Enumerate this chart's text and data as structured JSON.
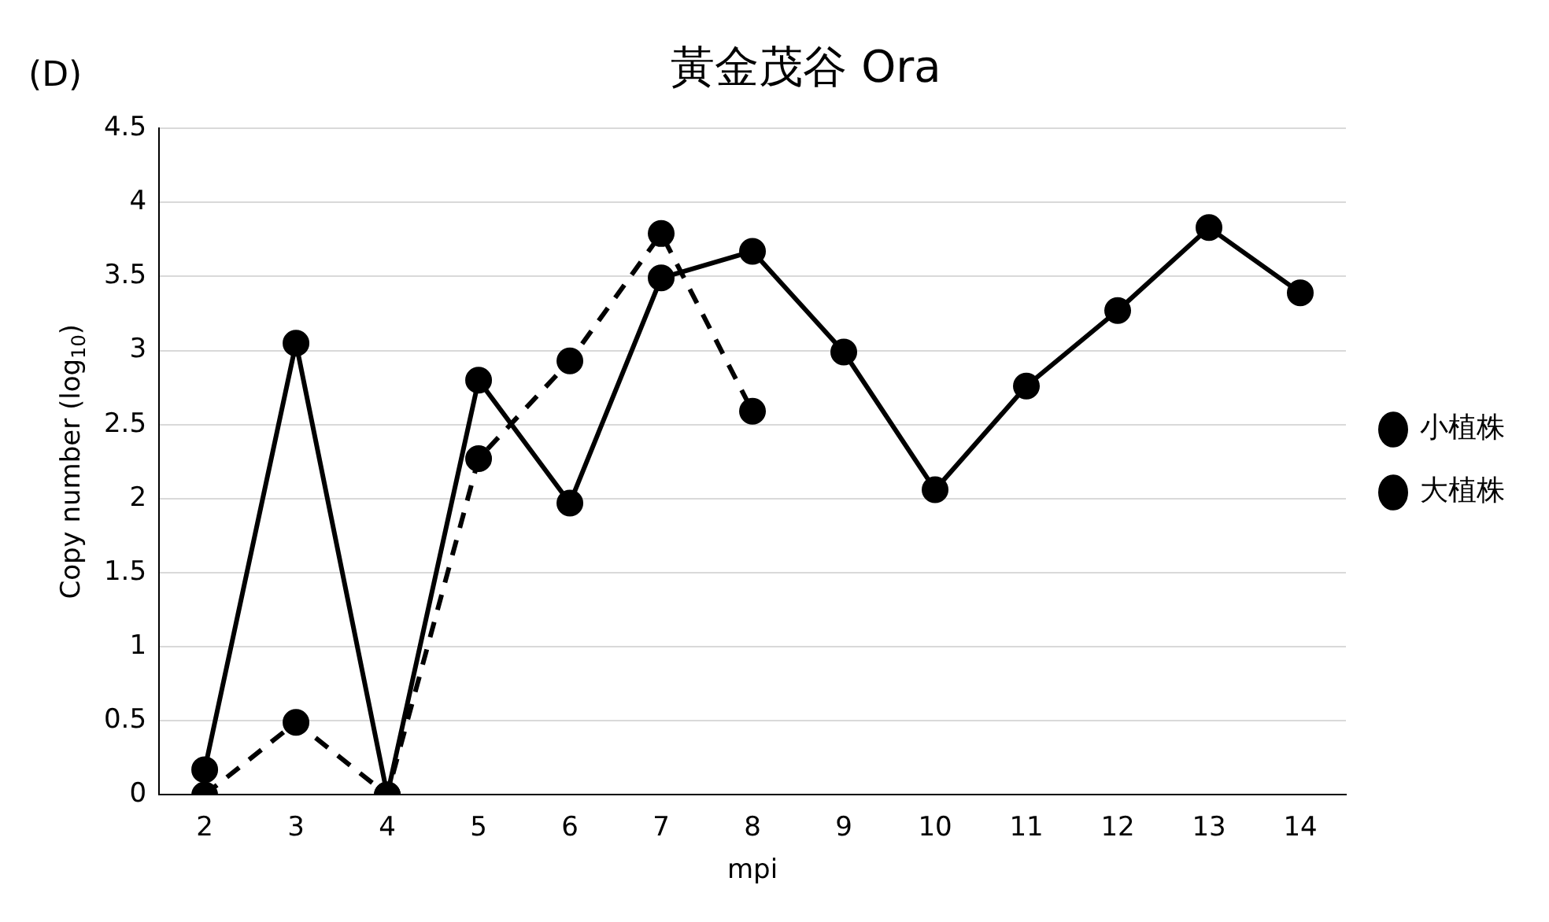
{
  "chart_data": {
    "type": "line",
    "title": "黃金茂谷 Ora",
    "xlabel": "mpi",
    "ylabel": "Copy number (log$_{10}$)",
    "annotations": [
      "(D)"
    ],
    "categories": [
      "2",
      "3",
      "4",
      "5",
      "6",
      "7",
      "8",
      "9",
      "10",
      "11",
      "12",
      "13",
      "14"
    ],
    "series": [
      {
        "name": "小植株",
        "color": "#000000",
        "line_style": "solid",
        "values": [
          0.17,
          3.05,
          0,
          2.8,
          1.97,
          3.49,
          3.67,
          2.99,
          2.06,
          2.76,
          3.27,
          3.83,
          3.39
        ]
      },
      {
        "name": "大植株",
        "color": "#000000",
        "line_style": "dashed",
        "values": [
          0,
          0.49,
          0,
          2.27,
          2.93,
          3.79,
          2.59,
          null,
          null,
          null,
          null,
          null,
          null
        ]
      }
    ],
    "ylim": [
      0,
      4.5
    ],
    "yticks": [
      0,
      0.5,
      1,
      1.5,
      2,
      2.5,
      3,
      3.5,
      4,
      4.5
    ],
    "grid": "y",
    "legend": "right",
    "marker": "circle"
  }
}
